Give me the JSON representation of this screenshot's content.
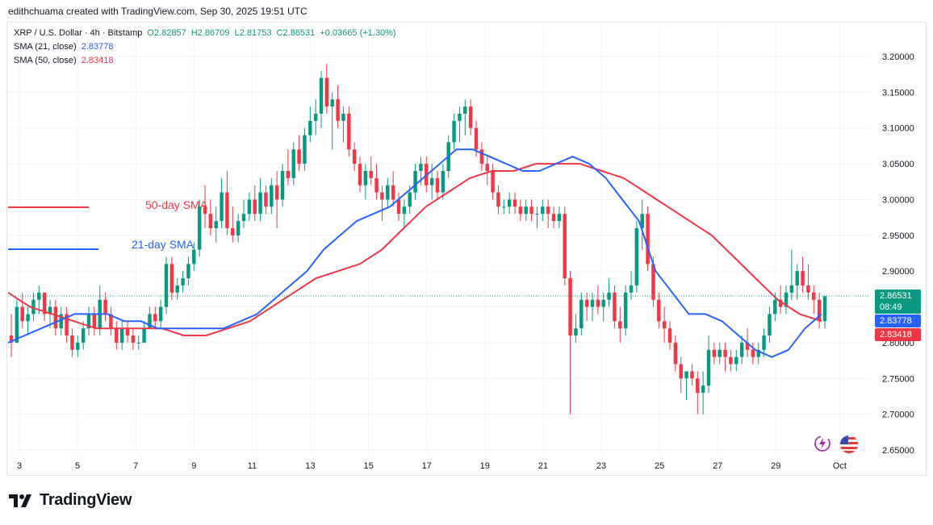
{
  "header": {
    "credit": "edithchuama created with TradingView.com, Sep 30, 2025 19:51 UTC"
  },
  "legend": {
    "symbol": "XRP / U.S. Dollar · 4h · Bitstamp",
    "open": "O2.82857",
    "high": "H2.86709",
    "low": "L2.81753",
    "close": "C2.86531",
    "change": "+0.03665 (+1.30%)",
    "sma21_label": "SMA (21, close)",
    "sma21_value": "2.83778",
    "sma50_label": "SMA (50, close)",
    "sma50_value": "2.83418"
  },
  "annotations": {
    "sma50_text": "50-day SMA",
    "sma21_text": "21-day SMA"
  },
  "price_axis": {
    "last_price": "2.86531",
    "countdown": "08:49",
    "sma21_tag": "2.83778",
    "sma50_tag": "2.83418"
  },
  "branding": {
    "logo_text": "TradingView"
  },
  "colors": {
    "up": "#089981",
    "down": "#f23645",
    "sma21": "#2962ff",
    "sma50": "#f23645",
    "grid": "#f0f3fa"
  },
  "icons": [
    "bolt-settings-icon",
    "us-flag-icon"
  ],
  "chart_data": {
    "type": "candlestick",
    "interval": "4h",
    "ylim": [
      2.63,
      3.22
    ],
    "y_ticks": [
      "2.65000",
      "2.70000",
      "2.75000",
      "2.80000",
      "2.85000",
      "2.90000",
      "2.95000",
      "3.00000",
      "3.05000",
      "3.10000",
      "3.15000",
      "3.20000"
    ],
    "x_ticks": [
      "3",
      "5",
      "7",
      "9",
      "11",
      "13",
      "15",
      "17",
      "19",
      "21",
      "23",
      "25",
      "27",
      "29",
      "Oct"
    ],
    "grid": true,
    "candles": [
      [
        2.81,
        2.84,
        2.78,
        2.8
      ],
      [
        2.8,
        2.86,
        2.8,
        2.85
      ],
      [
        2.85,
        2.87,
        2.82,
        2.83
      ],
      [
        2.83,
        2.85,
        2.81,
        2.84
      ],
      [
        2.84,
        2.87,
        2.83,
        2.86
      ],
      [
        2.86,
        2.88,
        2.84,
        2.87
      ],
      [
        2.87,
        2.87,
        2.83,
        2.84
      ],
      [
        2.84,
        2.86,
        2.82,
        2.85
      ],
      [
        2.85,
        2.86,
        2.81,
        2.82
      ],
      [
        2.82,
        2.85,
        2.81,
        2.84
      ],
      [
        2.84,
        2.85,
        2.8,
        2.81
      ],
      [
        2.81,
        2.82,
        2.78,
        2.79
      ],
      [
        2.79,
        2.81,
        2.78,
        2.8
      ],
      [
        2.8,
        2.83,
        2.79,
        2.82
      ],
      [
        2.82,
        2.85,
        2.81,
        2.84
      ],
      [
        2.84,
        2.85,
        2.81,
        2.82
      ],
      [
        2.82,
        2.88,
        2.81,
        2.86
      ],
      [
        2.86,
        2.87,
        2.83,
        2.84
      ],
      [
        2.84,
        2.85,
        2.81,
        2.82
      ],
      [
        2.82,
        2.83,
        2.79,
        2.8
      ],
      [
        2.8,
        2.83,
        2.79,
        2.82
      ],
      [
        2.82,
        2.83,
        2.8,
        2.81
      ],
      [
        2.81,
        2.82,
        2.79,
        2.8
      ],
      [
        2.8,
        2.81,
        2.79,
        2.8
      ],
      [
        2.8,
        2.83,
        2.8,
        2.82
      ],
      [
        2.82,
        2.85,
        2.82,
        2.84
      ],
      [
        2.84,
        2.85,
        2.82,
        2.83
      ],
      [
        2.83,
        2.86,
        2.82,
        2.85
      ],
      [
        2.85,
        2.92,
        2.84,
        2.91
      ],
      [
        2.91,
        2.92,
        2.86,
        2.87
      ],
      [
        2.87,
        2.89,
        2.86,
        2.88
      ],
      [
        2.88,
        2.9,
        2.87,
        2.89
      ],
      [
        2.89,
        2.92,
        2.88,
        2.91
      ],
      [
        2.91,
        2.94,
        2.9,
        2.93
      ],
      [
        2.93,
        3.0,
        2.92,
        2.99
      ],
      [
        2.99,
        3.02,
        2.96,
        2.98
      ],
      [
        2.98,
        3.0,
        2.95,
        2.96
      ],
      [
        2.96,
        2.99,
        2.94,
        2.97
      ],
      [
        2.97,
        3.03,
        2.96,
        3.01
      ],
      [
        3.01,
        3.04,
        2.95,
        2.96
      ],
      [
        2.96,
        2.99,
        2.94,
        2.95
      ],
      [
        2.95,
        2.98,
        2.94,
        2.97
      ],
      [
        2.97,
        3.0,
        2.96,
        2.98
      ],
      [
        2.98,
        3.01,
        2.97,
        3.0
      ],
      [
        3.0,
        3.02,
        2.97,
        2.98
      ],
      [
        2.98,
        3.03,
        2.97,
        3.01
      ],
      [
        3.01,
        3.02,
        2.98,
        2.99
      ],
      [
        2.99,
        3.03,
        2.98,
        3.02
      ],
      [
        3.02,
        3.04,
        2.96,
        3.0
      ],
      [
        3.0,
        3.05,
        2.99,
        3.04
      ],
      [
        3.04,
        3.07,
        3.02,
        3.03
      ],
      [
        3.03,
        3.08,
        3.02,
        3.07
      ],
      [
        3.07,
        3.09,
        3.04,
        3.05
      ],
      [
        3.05,
        3.1,
        3.04,
        3.09
      ],
      [
        3.09,
        3.13,
        3.08,
        3.11
      ],
      [
        3.11,
        3.14,
        3.09,
        3.12
      ],
      [
        3.12,
        3.18,
        3.1,
        3.17
      ],
      [
        3.17,
        3.19,
        3.12,
        3.13
      ],
      [
        3.13,
        3.15,
        3.07,
        3.14
      ],
      [
        3.14,
        3.16,
        3.1,
        3.11
      ],
      [
        3.11,
        3.13,
        3.08,
        3.12
      ],
      [
        3.12,
        3.13,
        3.06,
        3.07
      ],
      [
        3.07,
        3.08,
        3.04,
        3.05
      ],
      [
        3.05,
        3.06,
        3.01,
        3.02
      ],
      [
        3.02,
        3.05,
        3.0,
        3.04
      ],
      [
        3.04,
        3.06,
        3.02,
        3.03
      ],
      [
        3.03,
        3.05,
        3.0,
        3.01
      ],
      [
        3.01,
        3.02,
        2.97,
        3.0
      ],
      [
        3.0,
        3.03,
        2.99,
        3.02
      ],
      [
        3.02,
        3.04,
        2.99,
        3.0
      ],
      [
        3.0,
        3.01,
        2.97,
        2.98
      ],
      [
        2.98,
        3.0,
        2.96,
        2.99
      ],
      [
        2.99,
        3.02,
        2.98,
        3.01
      ],
      [
        3.01,
        3.05,
        3.0,
        3.04
      ],
      [
        3.04,
        3.06,
        3.02,
        3.05
      ],
      [
        3.05,
        3.06,
        3.01,
        3.02
      ],
      [
        3.02,
        3.05,
        3.0,
        3.03
      ],
      [
        3.03,
        3.04,
        3.0,
        3.01
      ],
      [
        3.01,
        3.05,
        3.0,
        3.04
      ],
      [
        3.04,
        3.09,
        3.03,
        3.08
      ],
      [
        3.08,
        3.12,
        3.07,
        3.11
      ],
      [
        3.11,
        3.13,
        3.08,
        3.12
      ],
      [
        3.12,
        3.14,
        3.09,
        3.13
      ],
      [
        3.13,
        3.14,
        3.09,
        3.1
      ],
      [
        3.1,
        3.11,
        3.06,
        3.07
      ],
      [
        3.07,
        3.08,
        3.04,
        3.05
      ],
      [
        3.05,
        3.06,
        3.02,
        3.04
      ],
      [
        3.04,
        3.05,
        3.0,
        3.01
      ],
      [
        3.01,
        3.02,
        2.98,
        2.99
      ],
      [
        2.99,
        3.0,
        2.98,
        2.99
      ],
      [
        2.99,
        3.01,
        2.98,
        3.0
      ],
      [
        3.0,
        3.01,
        2.98,
        2.99
      ],
      [
        2.99,
        3.0,
        2.97,
        2.98
      ],
      [
        2.98,
        3.0,
        2.97,
        2.99
      ],
      [
        2.99,
        3.0,
        2.97,
        2.98
      ],
      [
        2.98,
        2.99,
        2.96,
        2.98
      ],
      [
        2.98,
        3.0,
        2.97,
        2.99
      ],
      [
        2.99,
        3.0,
        2.96,
        2.98
      ],
      [
        2.98,
        2.99,
        2.96,
        2.97
      ],
      [
        2.97,
        2.99,
        2.96,
        2.98
      ],
      [
        2.98,
        2.99,
        2.88,
        2.89
      ],
      [
        2.89,
        2.9,
        2.7,
        2.81
      ],
      [
        2.81,
        2.84,
        2.8,
        2.82
      ],
      [
        2.82,
        2.87,
        2.81,
        2.86
      ],
      [
        2.86,
        2.87,
        2.83,
        2.85
      ],
      [
        2.85,
        2.87,
        2.83,
        2.86
      ],
      [
        2.86,
        2.88,
        2.84,
        2.85
      ],
      [
        2.85,
        2.87,
        2.83,
        2.86
      ],
      [
        2.86,
        2.89,
        2.85,
        2.87
      ],
      [
        2.87,
        2.88,
        2.82,
        2.83
      ],
      [
        2.83,
        2.85,
        2.8,
        2.82
      ],
      [
        2.82,
        2.88,
        2.81,
        2.87
      ],
      [
        2.87,
        2.9,
        2.86,
        2.88
      ],
      [
        2.88,
        2.97,
        2.87,
        2.96
      ],
      [
        2.96,
        3.0,
        2.93,
        2.98
      ],
      [
        2.98,
        2.99,
        2.9,
        2.91
      ],
      [
        2.91,
        2.92,
        2.85,
        2.86
      ],
      [
        2.86,
        2.87,
        2.82,
        2.83
      ],
      [
        2.83,
        2.85,
        2.8,
        2.82
      ],
      [
        2.82,
        2.83,
        2.79,
        2.8
      ],
      [
        2.8,
        2.81,
        2.76,
        2.77
      ],
      [
        2.77,
        2.78,
        2.73,
        2.75
      ],
      [
        2.75,
        2.76,
        2.72,
        2.76
      ],
      [
        2.76,
        2.77,
        2.74,
        2.75
      ],
      [
        2.75,
        2.76,
        2.7,
        2.73
      ],
      [
        2.73,
        2.76,
        2.7,
        2.74
      ],
      [
        2.74,
        2.81,
        2.73,
        2.79
      ],
      [
        2.79,
        2.8,
        2.77,
        2.78
      ],
      [
        2.78,
        2.8,
        2.77,
        2.79
      ],
      [
        2.79,
        2.8,
        2.76,
        2.78
      ],
      [
        2.78,
        2.79,
        2.76,
        2.77
      ],
      [
        2.77,
        2.79,
        2.76,
        2.78
      ],
      [
        2.78,
        2.81,
        2.77,
        2.8
      ],
      [
        2.8,
        2.82,
        2.78,
        2.79
      ],
      [
        2.79,
        2.8,
        2.77,
        2.78
      ],
      [
        2.78,
        2.8,
        2.77,
        2.79
      ],
      [
        2.79,
        2.82,
        2.78,
        2.81
      ],
      [
        2.81,
        2.85,
        2.8,
        2.84
      ],
      [
        2.84,
        2.87,
        2.83,
        2.86
      ],
      [
        2.86,
        2.88,
        2.84,
        2.85
      ],
      [
        2.85,
        2.88,
        2.84,
        2.87
      ],
      [
        2.87,
        2.93,
        2.86,
        2.88
      ],
      [
        2.88,
        2.91,
        2.86,
        2.9
      ],
      [
        2.9,
        2.92,
        2.87,
        2.88
      ],
      [
        2.88,
        2.91,
        2.86,
        2.87
      ],
      [
        2.87,
        2.88,
        2.84,
        2.86
      ],
      [
        2.86,
        2.87,
        2.82,
        2.83
      ],
      [
        2.83,
        2.86,
        2.82,
        2.865
      ]
    ],
    "sma21": [
      2.8,
      2.81,
      2.82,
      2.83,
      2.84,
      2.84,
      2.84,
      2.83,
      2.83,
      2.82,
      2.82,
      2.82,
      2.82,
      2.82,
      2.83,
      2.84,
      2.86,
      2.88,
      2.9,
      2.93,
      2.95,
      2.97,
      2.98,
      2.99,
      3.01,
      3.03,
      3.05,
      3.07,
      3.07,
      3.06,
      3.05,
      3.04,
      3.04,
      3.05,
      3.06,
      3.05,
      3.03,
      3.0,
      2.97,
      2.9,
      2.87,
      2.84,
      2.84,
      2.83,
      2.81,
      2.79,
      2.78,
      2.79,
      2.82,
      2.84
    ],
    "sma50": [
      2.87,
      2.85,
      2.84,
      2.83,
      2.82,
      2.82,
      2.82,
      2.82,
      2.81,
      2.81,
      2.82,
      2.83,
      2.85,
      2.87,
      2.89,
      2.9,
      2.91,
      2.93,
      2.96,
      2.99,
      3.01,
      3.03,
      3.04,
      3.04,
      3.05,
      3.05,
      3.05,
      3.04,
      3.03,
      3.01,
      2.99,
      2.97,
      2.95,
      2.92,
      2.89,
      2.86,
      2.84,
      2.83
    ]
  }
}
